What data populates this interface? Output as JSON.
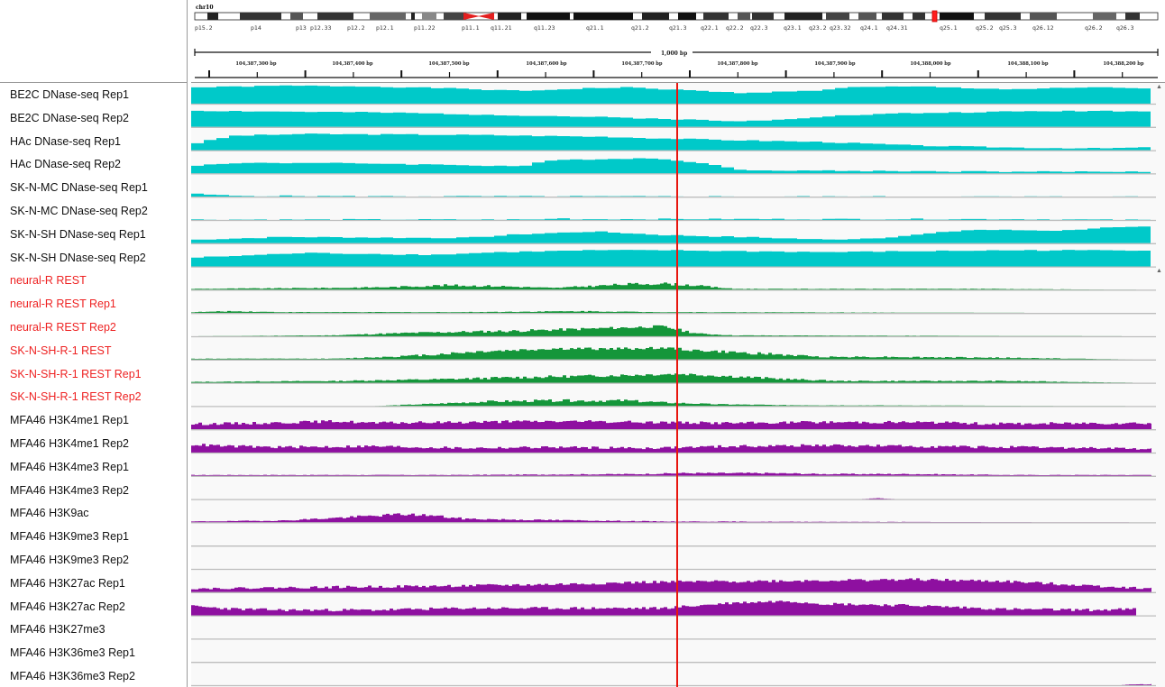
{
  "locus": {
    "chromosome": "chr10",
    "span_label": "1,000 bp",
    "bands": [
      "p15.2",
      "p14",
      "p13",
      "p12.33",
      "p12.2",
      "p12.1",
      "p11.22",
      "p11.1",
      "q11.21",
      "q11.23",
      "q21.1",
      "q21.2",
      "q21.3",
      "q22.1",
      "q22.2",
      "q22.3",
      "q23.1",
      "q23.2",
      "q23.32",
      "q24.1",
      "q24.31",
      "q25.1",
      "q25.2",
      "q25.3",
      "q26.12",
      "q26.2",
      "q26.3"
    ],
    "ticks": [
      "104,387,300 bp",
      "104,387,400 bp",
      "104,387,500 bp",
      "104,387,600 bp",
      "104,387,700 bp",
      "104,387,800 bp",
      "104,387,900 bp",
      "104,388,000 bp",
      "104,388,100 bp",
      "104,388,200 bp"
    ]
  },
  "colors": {
    "dnase": "#00c9c9",
    "rest": "#14963a",
    "histone": "#8e10a0",
    "red_label": "#ee2222",
    "center_line": "#e8150e"
  },
  "tracks": [
    {
      "name": "BE2C DNase-seq Rep1",
      "kind": "dnase",
      "highlight": false
    },
    {
      "name": "BE2C DNase-seq Rep2",
      "kind": "dnase",
      "highlight": false
    },
    {
      "name": "HAc DNase-seq Rep1",
      "kind": "dnase",
      "highlight": false
    },
    {
      "name": "HAc DNase-seq Rep2",
      "kind": "dnase",
      "highlight": false
    },
    {
      "name": "SK-N-MC DNase-seq Rep1",
      "kind": "dnase",
      "highlight": false
    },
    {
      "name": "SK-N-MC DNase-seq Rep2",
      "kind": "dnase",
      "highlight": false
    },
    {
      "name": "SK-N-SH DNase-seq Rep1",
      "kind": "dnase",
      "highlight": false
    },
    {
      "name": "SK-N-SH DNase-seq Rep2",
      "kind": "dnase",
      "highlight": false
    },
    {
      "name": "neural-R REST",
      "kind": "rest",
      "highlight": true
    },
    {
      "name": "neural-R REST Rep1",
      "kind": "rest",
      "highlight": true
    },
    {
      "name": "neural-R REST Rep2",
      "kind": "rest",
      "highlight": true
    },
    {
      "name": "SK-N-SH-R-1 REST",
      "kind": "rest",
      "highlight": true
    },
    {
      "name": "SK-N-SH-R-1 REST Rep1",
      "kind": "rest",
      "highlight": true
    },
    {
      "name": "SK-N-SH-R-1 REST Rep2",
      "kind": "rest",
      "highlight": true
    },
    {
      "name": "MFA46 H3K4me1 Rep1",
      "kind": "histone",
      "highlight": false
    },
    {
      "name": "MFA46 H3K4me1 Rep2",
      "kind": "histone",
      "highlight": false
    },
    {
      "name": "MFA46 H3K4me3 Rep1",
      "kind": "histone",
      "highlight": false
    },
    {
      "name": "MFA46 H3K4me3 Rep2",
      "kind": "histone",
      "highlight": false
    },
    {
      "name": "MFA46 H3K9ac",
      "kind": "histone",
      "highlight": false
    },
    {
      "name": "MFA46 H3K9me3 Rep1",
      "kind": "histone",
      "highlight": false
    },
    {
      "name": "MFA46 H3K9me3 Rep2",
      "kind": "histone",
      "highlight": false
    },
    {
      "name": "MFA46 H3K27ac Rep1",
      "kind": "histone",
      "highlight": false
    },
    {
      "name": "MFA46 H3K27ac Rep2",
      "kind": "histone",
      "highlight": false
    },
    {
      "name": "MFA46 H3K27me3",
      "kind": "histone",
      "highlight": false
    },
    {
      "name": "MFA46 H3K36me3 Rep1",
      "kind": "histone",
      "highlight": false
    },
    {
      "name": "MFA46 H3K36me3 Rep2",
      "kind": "histone",
      "highlight": false
    }
  ]
}
